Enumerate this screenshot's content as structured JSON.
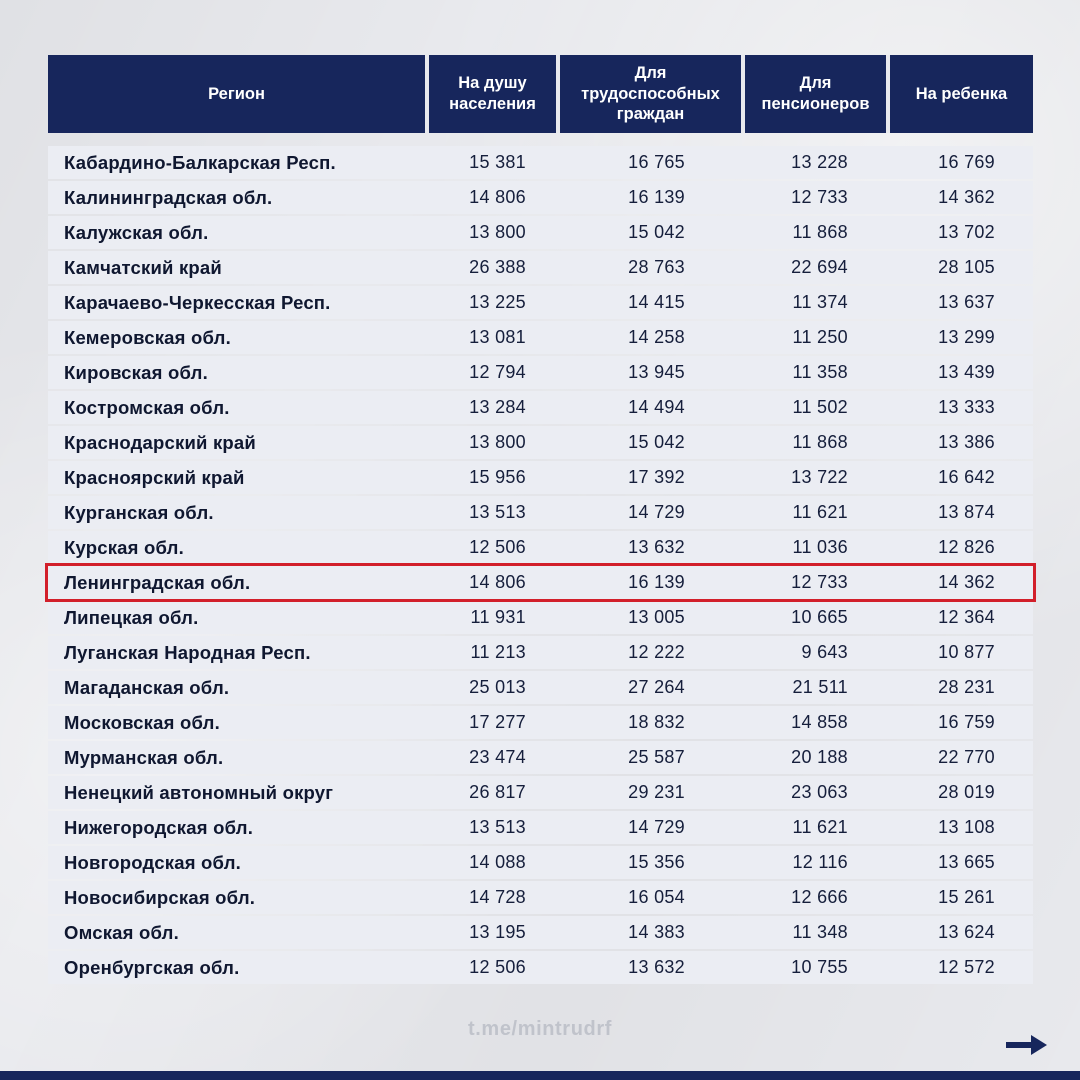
{
  "colors": {
    "header_bg": "#17265c",
    "header_text": "#ffffff",
    "row_bg": "#ebedf3",
    "region_text": "#0f1730",
    "value_text": "#151e3b",
    "highlight_border": "#d21f2a",
    "footer_text": "#c0c3cb",
    "accent_navy": "#17265c"
  },
  "chart_data": {
    "type": "table",
    "columns": [
      "Регион",
      "На душу населения",
      "Для трудоспособных граждан",
      "Для пенсионеров",
      "На ребенка"
    ],
    "rows": [
      {
        "region": "Кабардино-Балкарская Респ.",
        "values": [
          "15 381",
          "16 765",
          "13 228",
          "16 769"
        ],
        "highlighted": false
      },
      {
        "region": "Калининградская обл.",
        "values": [
          "14 806",
          "16 139",
          "12 733",
          "14 362"
        ],
        "highlighted": false
      },
      {
        "region": "Калужская обл.",
        "values": [
          "13 800",
          "15 042",
          "11 868",
          "13 702"
        ],
        "highlighted": false
      },
      {
        "region": "Камчатский край",
        "values": [
          "26 388",
          "28 763",
          "22 694",
          "28 105"
        ],
        "highlighted": false
      },
      {
        "region": "Карачаево-Черкесская Респ.",
        "values": [
          "13 225",
          "14 415",
          "11 374",
          "13 637"
        ],
        "highlighted": false
      },
      {
        "region": "Кемеровская обл.",
        "values": [
          "13 081",
          "14 258",
          "11 250",
          "13 299"
        ],
        "highlighted": false
      },
      {
        "region": "Кировская обл.",
        "values": [
          "12 794",
          "13 945",
          "11 358",
          "13 439"
        ],
        "highlighted": false
      },
      {
        "region": "Костромская обл.",
        "values": [
          "13 284",
          "14 494",
          "11 502",
          "13 333"
        ],
        "highlighted": false
      },
      {
        "region": "Краснодарский край",
        "values": [
          "13 800",
          "15 042",
          "11 868",
          "13 386"
        ],
        "highlighted": false
      },
      {
        "region": "Красноярский край",
        "values": [
          "15 956",
          "17 392",
          "13 722",
          "16 642"
        ],
        "highlighted": false
      },
      {
        "region": "Курганская обл.",
        "values": [
          "13 513",
          "14 729",
          "11 621",
          "13 874"
        ],
        "highlighted": false
      },
      {
        "region": "Курская обл.",
        "values": [
          "12 506",
          "13 632",
          "11 036",
          "12 826"
        ],
        "highlighted": false
      },
      {
        "region": "Ленинградская обл.",
        "values": [
          "14 806",
          "16 139",
          "12 733",
          "14 362"
        ],
        "highlighted": true
      },
      {
        "region": "Липецкая обл.",
        "values": [
          "11 931",
          "13 005",
          "10 665",
          "12 364"
        ],
        "highlighted": false
      },
      {
        "region": "Луганская Народная Респ.",
        "values": [
          "11 213",
          "12 222",
          "9 643",
          "10 877"
        ],
        "highlighted": false
      },
      {
        "region": "Магаданская обл.",
        "values": [
          "25 013",
          "27 264",
          "21 511",
          "28 231"
        ],
        "highlighted": false
      },
      {
        "region": "Московская обл.",
        "values": [
          "17 277",
          "18 832",
          "14 858",
          "16 759"
        ],
        "highlighted": false
      },
      {
        "region": "Мурманская обл.",
        "values": [
          "23 474",
          "25 587",
          "20 188",
          "22 770"
        ],
        "highlighted": false
      },
      {
        "region": "Ненецкий автономный округ",
        "values": [
          "26 817",
          "29 231",
          "23 063",
          "28 019"
        ],
        "highlighted": false
      },
      {
        "region": "Нижегородская обл.",
        "values": [
          "13 513",
          "14 729",
          "11 621",
          "13 108"
        ],
        "highlighted": false
      },
      {
        "region": "Новгородская обл.",
        "values": [
          "14 088",
          "15 356",
          "12 116",
          "13 665"
        ],
        "highlighted": false
      },
      {
        "region": "Новосибирская обл.",
        "values": [
          "14 728",
          "16 054",
          "12 666",
          "15 261"
        ],
        "highlighted": false
      },
      {
        "region": "Омская обл.",
        "values": [
          "13 195",
          "14 383",
          "11 348",
          "13 624"
        ],
        "highlighted": false
      },
      {
        "region": "Оренбургская обл.",
        "values": [
          "12 506",
          "13 632",
          "10 755",
          "12 572"
        ],
        "highlighted": false
      }
    ]
  },
  "footer": {
    "link": "t.me/mintrudrf"
  }
}
